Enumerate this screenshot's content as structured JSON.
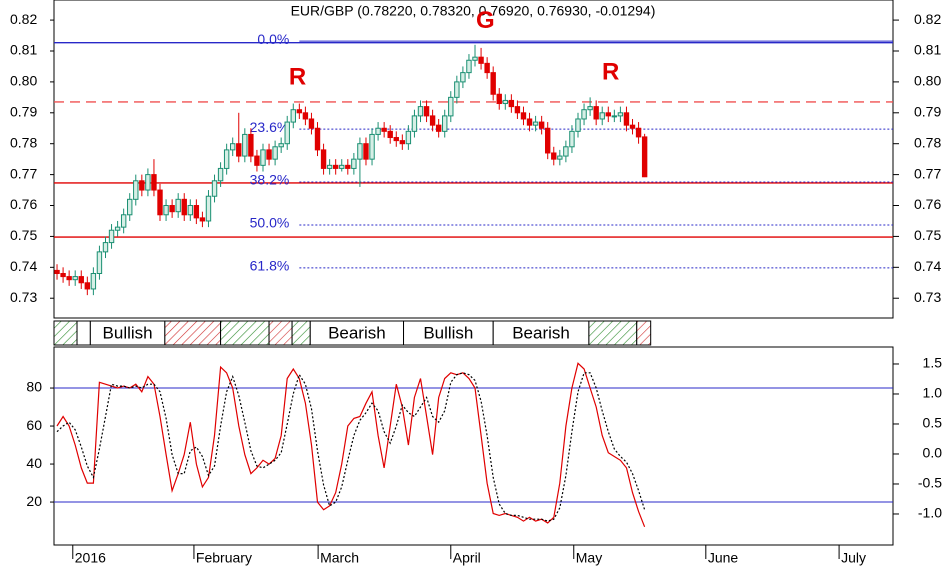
{
  "chart_data": [
    {
      "type": "candlestick",
      "title": "EUR/GBP (0.78220, 0.78320, 0.76920, 0.76930, -0.01294)",
      "xlim": [
        -0.5,
        138
      ],
      "ylim": [
        0.7236,
        0.8265
      ],
      "yticks": [
        0.73,
        0.74,
        0.75,
        0.76,
        0.77,
        0.78,
        0.79,
        {
          "value": 0.8,
          "label": "0.80"
        },
        0.81,
        0.82
      ],
      "up_color": "#1a8f72",
      "up_fill": "#d6efe6",
      "down_color": "#e00000",
      "open": [
        0.739,
        0.738,
        0.737,
        0.736,
        0.737,
        0.735,
        0.733,
        0.738,
        0.745,
        0.748,
        0.752,
        0.753,
        0.757,
        0.762,
        0.768,
        0.765,
        0.77,
        0.765,
        0.757,
        0.76,
        0.758,
        0.762,
        0.757,
        0.76,
        0.756,
        0.755,
        0.763,
        0.768,
        0.772,
        0.778,
        0.78,
        0.776,
        0.783,
        0.776,
        0.773,
        0.778,
        0.775,
        0.779,
        0.78,
        0.787,
        0.791,
        0.79,
        0.788,
        0.785,
        0.778,
        0.772,
        0.773,
        0.772,
        0.773,
        0.772,
        0.775,
        0.78,
        0.775,
        0.783,
        0.785,
        0.784,
        0.782,
        0.781,
        0.78,
        0.784,
        0.789,
        0.792,
        0.789,
        0.786,
        0.784,
        0.789,
        0.795,
        0.8,
        0.803,
        0.807,
        0.808,
        0.806,
        0.803,
        0.796,
        0.793,
        0.794,
        0.792,
        0.79,
        0.788,
        0.786,
        0.787,
        0.785,
        0.777,
        0.775,
        0.776,
        0.779,
        0.784,
        0.788,
        0.791,
        0.792,
        0.788,
        0.79,
        0.789,
        0.789,
        0.79,
        0.786,
        0.785,
        0.7822
      ],
      "high": [
        0.741,
        0.74,
        0.739,
        0.739,
        0.739,
        0.737,
        0.74,
        0.747,
        0.75,
        0.754,
        0.755,
        0.759,
        0.764,
        0.77,
        0.77,
        0.772,
        0.775,
        0.767,
        0.762,
        0.762,
        0.764,
        0.764,
        0.762,
        0.762,
        0.758,
        0.765,
        0.77,
        0.774,
        0.78,
        0.782,
        0.79,
        0.785,
        0.785,
        0.778,
        0.78,
        0.78,
        0.781,
        0.782,
        0.789,
        0.793,
        0.793,
        0.792,
        0.79,
        0.787,
        0.78,
        0.775,
        0.775,
        0.775,
        0.775,
        0.777,
        0.782,
        0.782,
        0.785,
        0.787,
        0.787,
        0.786,
        0.784,
        0.783,
        0.786,
        0.791,
        0.794,
        0.794,
        0.791,
        0.788,
        0.791,
        0.797,
        0.802,
        0.805,
        0.809,
        0.812,
        0.811,
        0.808,
        0.805,
        0.798,
        0.796,
        0.796,
        0.794,
        0.792,
        0.79,
        0.789,
        0.789,
        0.787,
        0.779,
        0.778,
        0.781,
        0.786,
        0.79,
        0.793,
        0.795,
        0.794,
        0.792,
        0.792,
        0.791,
        0.792,
        0.792,
        0.788,
        0.787,
        0.7832
      ],
      "low": [
        0.736,
        0.735,
        0.734,
        0.734,
        0.733,
        0.731,
        0.731,
        0.736,
        0.743,
        0.746,
        0.75,
        0.751,
        0.755,
        0.76,
        0.763,
        0.763,
        0.763,
        0.755,
        0.755,
        0.756,
        0.756,
        0.755,
        0.755,
        0.754,
        0.753,
        0.753,
        0.761,
        0.766,
        0.77,
        0.776,
        0.774,
        0.774,
        0.774,
        0.771,
        0.771,
        0.773,
        0.773,
        0.777,
        0.778,
        0.785,
        0.788,
        0.786,
        0.783,
        0.776,
        0.77,
        0.77,
        0.77,
        0.771,
        0.77,
        0.77,
        0.766,
        0.773,
        0.773,
        0.781,
        0.782,
        0.78,
        0.779,
        0.778,
        0.778,
        0.782,
        0.787,
        0.787,
        0.784,
        0.782,
        0.782,
        0.787,
        0.793,
        0.798,
        0.801,
        0.805,
        0.804,
        0.801,
        0.794,
        0.791,
        0.791,
        0.79,
        0.788,
        0.786,
        0.784,
        0.784,
        0.783,
        0.775,
        0.773,
        0.773,
        0.774,
        0.777,
        0.782,
        0.786,
        0.789,
        0.786,
        0.786,
        0.787,
        0.787,
        0.787,
        0.784,
        0.783,
        0.78,
        0.7692
      ],
      "close": [
        0.738,
        0.737,
        0.736,
        0.737,
        0.735,
        0.733,
        0.738,
        0.745,
        0.748,
        0.752,
        0.753,
        0.757,
        0.762,
        0.768,
        0.765,
        0.77,
        0.765,
        0.757,
        0.76,
        0.758,
        0.762,
        0.757,
        0.76,
        0.756,
        0.755,
        0.763,
        0.768,
        0.772,
        0.778,
        0.78,
        0.776,
        0.783,
        0.776,
        0.773,
        0.778,
        0.775,
        0.779,
        0.78,
        0.787,
        0.791,
        0.79,
        0.788,
        0.785,
        0.778,
        0.772,
        0.773,
        0.772,
        0.773,
        0.772,
        0.775,
        0.78,
        0.775,
        0.783,
        0.785,
        0.784,
        0.782,
        0.781,
        0.78,
        0.784,
        0.789,
        0.792,
        0.789,
        0.786,
        0.784,
        0.789,
        0.795,
        0.8,
        0.803,
        0.807,
        0.808,
        0.806,
        0.803,
        0.796,
        0.793,
        0.794,
        0.792,
        0.79,
        0.788,
        0.786,
        0.787,
        0.785,
        0.777,
        0.775,
        0.776,
        0.779,
        0.784,
        0.788,
        0.791,
        0.792,
        0.788,
        0.79,
        0.789,
        0.789,
        0.79,
        0.786,
        0.785,
        0.7822,
        0.7693
      ],
      "levels": [
        {
          "value": 0.8127,
          "color": "#2828c8",
          "dash": "none"
        },
        {
          "value": 0.7935,
          "color": "#f05050",
          "dash": "10,6"
        },
        {
          "value": 0.7673,
          "color": "#e00000",
          "dash": "none"
        },
        {
          "value": 0.7498,
          "color": "#e00000",
          "dash": "none"
        }
      ],
      "fib_from": 40,
      "fib_color": "#2828c8",
      "fib_levels": [
        {
          "label": "0.0%",
          "value": 0.8132,
          "dash": "none"
        },
        {
          "label": "23.6%",
          "value": 0.7847,
          "dash": "2,2"
        },
        {
          "label": "38.2%",
          "value": 0.7676,
          "dash": "2,2"
        },
        {
          "label": "50.0%",
          "value": 0.7537,
          "dash": "2,2"
        },
        {
          "label": "61.8%",
          "value": 0.7398,
          "dash": "2,2"
        }
      ],
      "annotation_color": "#e00000",
      "annotations": [
        {
          "text": "R",
          "x": 39.7,
          "y": 0.8012
        },
        {
          "text": "G",
          "x": 70.7,
          "y": 0.8195
        },
        {
          "text": "R",
          "x": 91.4,
          "y": 0.8028
        }
      ]
    },
    {
      "type": "band",
      "xlim": [
        -0.5,
        138
      ],
      "segments": [
        {
          "from": -0.5,
          "to": 3.3,
          "color": "#2a8a2a",
          "hatch": true
        },
        {
          "from": 3.3,
          "to": 5.5,
          "color": "#ffffff",
          "hatch": false
        },
        {
          "from": 5.5,
          "to": 17.8,
          "color": "#ffffff",
          "hatch": false,
          "label": "Bullish"
        },
        {
          "from": 17.8,
          "to": 27,
          "color": "#d03030",
          "hatch": true
        },
        {
          "from": 27,
          "to": 35,
          "color": "#2a8a2a",
          "hatch": true
        },
        {
          "from": 35,
          "to": 38.8,
          "color": "#d03030",
          "hatch": true
        },
        {
          "from": 38.8,
          "to": 41.8,
          "color": "#2a8a2a",
          "hatch": true
        },
        {
          "from": 41.8,
          "to": 57.2,
          "color": "#ffffff",
          "hatch": false,
          "label": "Bearish"
        },
        {
          "from": 57.2,
          "to": 72,
          "color": "#ffffff",
          "hatch": false,
          "label": "Bullish"
        },
        {
          "from": 72,
          "to": 87.8,
          "color": "#ffffff",
          "hatch": false,
          "label": "Bearish"
        },
        {
          "from": 87.8,
          "to": 95.7,
          "color": "#2a8a2a",
          "hatch": true
        },
        {
          "from": 95.7,
          "to": 98,
          "color": "#d03030",
          "hatch": true
        }
      ]
    },
    {
      "type": "line",
      "xlim": [
        -0.5,
        138
      ],
      "ylim": [
        -2.6,
        101.6
      ],
      "yticks": [
        20,
        40,
        60,
        80
      ],
      "y2lim": [
        -1.517,
        1.783
      ],
      "y2ticks": [
        1.5,
        {
          "value": 1,
          "label": "1.0"
        },
        0.5,
        {
          "value": 0,
          "label": "0.0"
        },
        -0.5,
        {
          "value": -1,
          "label": "-1.0"
        }
      ],
      "xticks": [
        {
          "value": 2.6,
          "label": "2016"
        },
        {
          "value": 22.6,
          "label": "February"
        },
        {
          "value": 43.1,
          "label": "March"
        },
        {
          "value": 65,
          "label": "April"
        },
        {
          "value": 85.3,
          "label": "May"
        },
        {
          "value": 107.1,
          "label": "June"
        },
        {
          "value": 129.1,
          "label": "July"
        }
      ],
      "levels": [
        {
          "value": 80,
          "color": "#2828c8"
        },
        {
          "value": 20,
          "color": "#2828c8"
        }
      ],
      "series": [
        {
          "color": "#e00000",
          "dash": "none",
          "values": [
            60,
            65,
            60,
            50,
            38,
            30,
            30,
            83,
            82,
            81,
            80,
            81,
            80,
            82,
            78,
            86,
            82,
            65,
            45,
            26,
            35,
            45,
            62,
            40,
            28,
            33,
            55,
            91,
            88,
            80,
            60,
            45,
            35,
            38,
            42,
            40,
            43,
            55,
            85,
            90,
            85,
            72,
            50,
            20,
            16,
            18,
            25,
            40,
            60,
            64,
            65,
            72,
            78,
            55,
            38,
            60,
            82,
            70,
            50,
            75,
            85,
            65,
            45,
            75,
            85,
            88,
            87,
            88,
            85,
            80,
            55,
            30,
            14,
            13,
            14,
            13,
            12,
            10,
            12,
            10,
            11,
            9,
            12,
            30,
            60,
            80,
            93,
            90,
            80,
            70,
            55,
            46,
            44,
            42,
            38,
            25,
            15,
            7
          ]
        },
        {
          "color": "#000000",
          "dash": "2,2",
          "values": [
            57,
            60,
            62,
            58,
            49,
            39,
            33,
            48,
            65,
            82,
            81,
            81,
            80,
            81,
            80,
            82,
            82,
            78,
            64,
            45,
            35,
            35,
            47,
            49,
            44,
            34,
            39,
            60,
            78,
            86,
            76,
            62,
            47,
            39,
            38,
            40,
            42,
            46,
            61,
            77,
            87,
            82,
            69,
            47,
            29,
            18,
            20,
            28,
            42,
            55,
            63,
            67,
            72,
            68,
            57,
            51,
            60,
            71,
            67,
            65,
            70,
            75,
            65,
            62,
            68,
            83,
            87,
            88,
            87,
            84,
            73,
            55,
            33,
            19,
            14,
            13,
            13,
            12,
            11,
            11,
            11,
            10,
            11,
            17,
            34,
            57,
            78,
            88,
            88,
            80,
            68,
            57,
            48,
            44,
            41,
            35,
            26,
            16
          ]
        }
      ]
    }
  ]
}
